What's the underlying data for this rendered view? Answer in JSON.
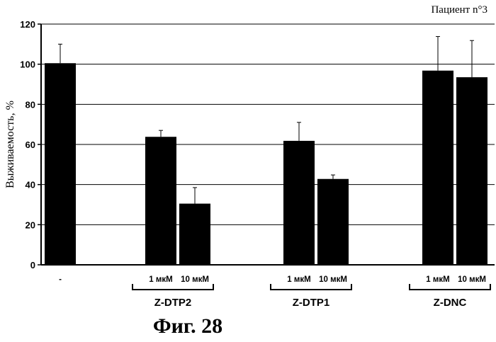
{
  "chart_data": {
    "type": "bar",
    "title": "Пациент n°3",
    "ylabel": "Выживаемость, %",
    "ylim": [
      0,
      120
    ],
    "yticks": [
      0,
      20,
      40,
      60,
      80,
      100,
      120
    ],
    "grid": true,
    "bars": [
      {
        "label": "-",
        "value": 100.5,
        "error": 9.5
      },
      {
        "label": "1 мкМ",
        "value": 63.8,
        "error": 3.2
      },
      {
        "label": "10 мкМ",
        "value": 30.5,
        "error": 8.0
      },
      {
        "label": "1 мкМ",
        "value": 61.8,
        "error": 9.2
      },
      {
        "label": "10 мкМ",
        "value": 42.8,
        "error": 2.0
      },
      {
        "label": "1 мкМ",
        "value": 96.8,
        "error": 17.0
      },
      {
        "label": "10 мкМ",
        "value": 93.5,
        "error": 18.3
      }
    ],
    "groups": [
      {
        "label": "Z-DTP2",
        "bars": [
          1,
          2
        ]
      },
      {
        "label": "Z-DTP1",
        "bars": [
          3,
          4
        ]
      },
      {
        "label": "Z-DNC",
        "bars": [
          5,
          6
        ]
      }
    ]
  },
  "caption": "Фиг.  28"
}
